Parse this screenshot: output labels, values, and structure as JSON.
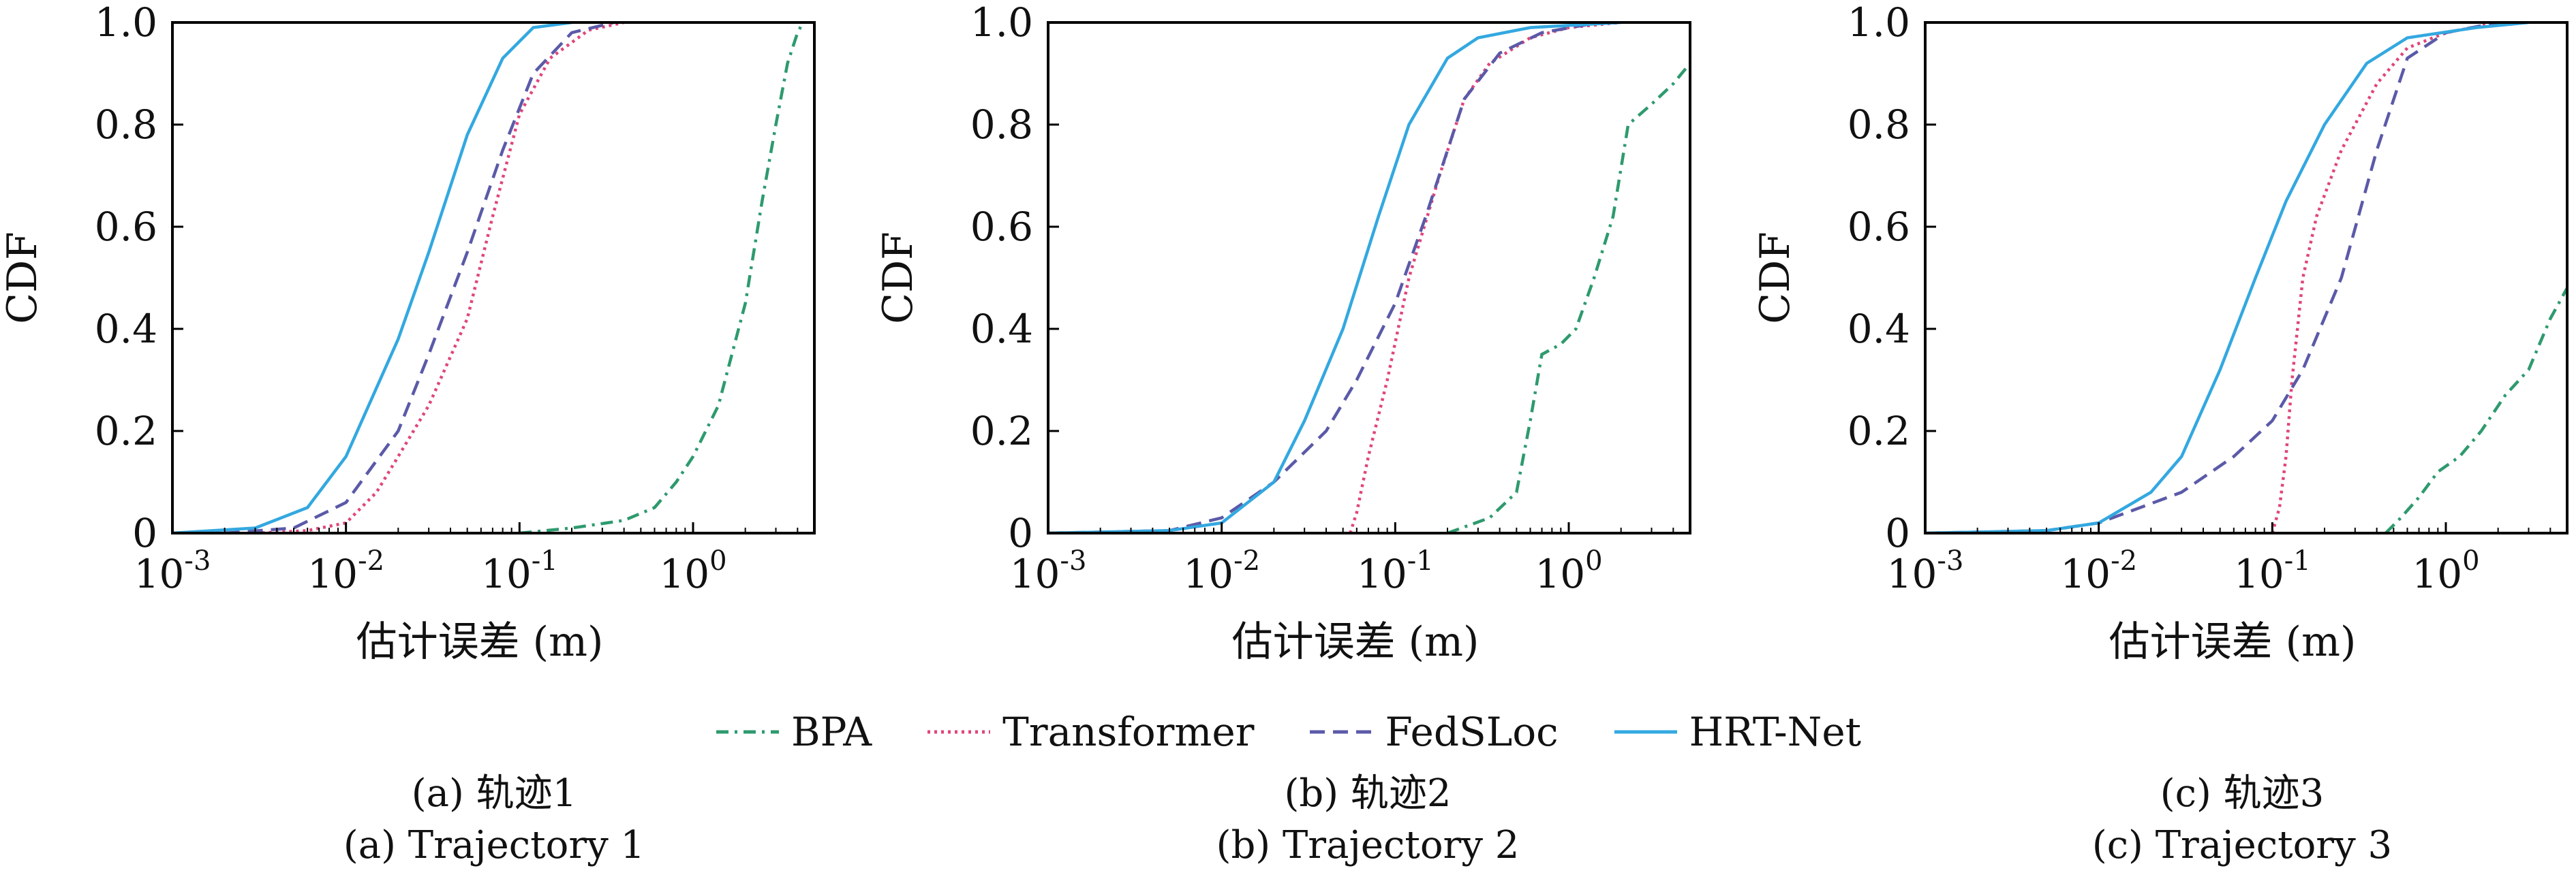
{
  "legend": {
    "items": [
      {
        "name": "BPA",
        "color": "#2e9a6e",
        "dash": "18,9,4,9"
      },
      {
        "name": "Transformer",
        "color": "#e0457b",
        "dash": "4,6"
      },
      {
        "name": "FedSLoc",
        "color": "#5b5aa8",
        "dash": "22,12"
      },
      {
        "name": "HRT-Net",
        "color": "#33a8e0",
        "dash": ""
      }
    ]
  },
  "chart_data": [
    {
      "type": "line",
      "xscale": "log",
      "xlim": [
        0.001,
        5
      ],
      "ylim": [
        0,
        1
      ],
      "xlabel": "估计误差 (m)",
      "ylabel": "CDF",
      "xticks": [
        {
          "v": 0.001,
          "base": "10",
          "exp": "-3"
        },
        {
          "v": 0.01,
          "base": "10",
          "exp": "-2"
        },
        {
          "v": 0.1,
          "base": "10",
          "exp": "-1"
        },
        {
          "v": 1,
          "base": "10",
          "exp": "0"
        }
      ],
      "yticks": [
        {
          "v": 0,
          "label": "0"
        },
        {
          "v": 0.2,
          "label": "0.2"
        },
        {
          "v": 0.4,
          "label": "0.4"
        },
        {
          "v": 0.6,
          "label": "0.6"
        },
        {
          "v": 0.8,
          "label": "0.8"
        },
        {
          "v": 1,
          "label": "1.0"
        }
      ],
      "caption_cn": "(a) 轨迹1",
      "caption_en": "(a) Trajectory 1",
      "series": [
        {
          "name": "BPA",
          "points": [
            [
              0.1,
              0
            ],
            [
              0.2,
              0.01
            ],
            [
              0.4,
              0.025
            ],
            [
              0.6,
              0.05
            ],
            [
              0.8,
              0.1
            ],
            [
              1,
              0.15
            ],
            [
              1.4,
              0.25
            ],
            [
              2,
              0.45
            ],
            [
              2.5,
              0.65
            ],
            [
              3,
              0.8
            ],
            [
              3.5,
              0.92
            ],
            [
              4,
              0.98
            ],
            [
              4.3,
              1
            ]
          ]
        },
        {
          "name": "Transformer",
          "points": [
            [
              0.003,
              0
            ],
            [
              0.006,
              0.005
            ],
            [
              0.01,
              0.02
            ],
            [
              0.015,
              0.08
            ],
            [
              0.02,
              0.15
            ],
            [
              0.03,
              0.25
            ],
            [
              0.05,
              0.42
            ],
            [
              0.07,
              0.62
            ],
            [
              0.1,
              0.82
            ],
            [
              0.15,
              0.93
            ],
            [
              0.25,
              0.985
            ],
            [
              0.4,
              1
            ]
          ]
        },
        {
          "name": "FedSLoc",
          "points": [
            [
              0.002,
              0
            ],
            [
              0.005,
              0.01
            ],
            [
              0.01,
              0.06
            ],
            [
              0.02,
              0.2
            ],
            [
              0.03,
              0.35
            ],
            [
              0.05,
              0.55
            ],
            [
              0.08,
              0.75
            ],
            [
              0.12,
              0.9
            ],
            [
              0.2,
              0.98
            ],
            [
              0.35,
              1
            ]
          ]
        },
        {
          "name": "HRT-Net",
          "points": [
            [
              0.001,
              0
            ],
            [
              0.003,
              0.01
            ],
            [
              0.006,
              0.05
            ],
            [
              0.01,
              0.15
            ],
            [
              0.02,
              0.38
            ],
            [
              0.03,
              0.55
            ],
            [
              0.05,
              0.78
            ],
            [
              0.08,
              0.93
            ],
            [
              0.12,
              0.99
            ],
            [
              0.2,
              1
            ]
          ]
        }
      ]
    },
    {
      "type": "line",
      "xscale": "log",
      "xlim": [
        0.001,
        5
      ],
      "ylim": [
        0,
        1
      ],
      "xlabel": "估计误差 (m)",
      "ylabel": "CDF",
      "xticks": [
        {
          "v": 0.001,
          "base": "10",
          "exp": "-3"
        },
        {
          "v": 0.01,
          "base": "10",
          "exp": "-2"
        },
        {
          "v": 0.1,
          "base": "10",
          "exp": "-1"
        },
        {
          "v": 1,
          "base": "10",
          "exp": "0"
        }
      ],
      "yticks": [
        {
          "v": 0,
          "label": "0"
        },
        {
          "v": 0.2,
          "label": "0.2"
        },
        {
          "v": 0.4,
          "label": "0.4"
        },
        {
          "v": 0.6,
          "label": "0.6"
        },
        {
          "v": 0.8,
          "label": "0.8"
        },
        {
          "v": 1,
          "label": "1.0"
        }
      ],
      "caption_cn": "(b) 轨迹2",
      "caption_en": "(b) Trajectory 2",
      "series": [
        {
          "name": "BPA",
          "points": [
            [
              0.2,
              0
            ],
            [
              0.35,
              0.03
            ],
            [
              0.5,
              0.08
            ],
            [
              0.6,
              0.22
            ],
            [
              0.7,
              0.35
            ],
            [
              0.9,
              0.37
            ],
            [
              1.1,
              0.4
            ],
            [
              1.4,
              0.5
            ],
            [
              1.8,
              0.62
            ],
            [
              2.2,
              0.8
            ],
            [
              3,
              0.84
            ],
            [
              4,
              0.88
            ],
            [
              5,
              0.92
            ]
          ]
        },
        {
          "name": "Transformer",
          "points": [
            [
              0.055,
              0
            ],
            [
              0.06,
              0.04
            ],
            [
              0.07,
              0.15
            ],
            [
              0.09,
              0.3
            ],
            [
              0.12,
              0.5
            ],
            [
              0.18,
              0.7
            ],
            [
              0.25,
              0.85
            ],
            [
              0.35,
              0.92
            ],
            [
              0.6,
              0.97
            ],
            [
              1,
              0.99
            ],
            [
              2,
              1
            ]
          ]
        },
        {
          "name": "FedSLoc",
          "points": [
            [
              0.001,
              0
            ],
            [
              0.005,
              0.005
            ],
            [
              0.01,
              0.03
            ],
            [
              0.02,
              0.1
            ],
            [
              0.04,
              0.2
            ],
            [
              0.06,
              0.3
            ],
            [
              0.1,
              0.45
            ],
            [
              0.15,
              0.62
            ],
            [
              0.25,
              0.85
            ],
            [
              0.4,
              0.94
            ],
            [
              0.7,
              0.98
            ],
            [
              1.5,
              1
            ]
          ]
        },
        {
          "name": "HRT-Net",
          "points": [
            [
              0.001,
              0
            ],
            [
              0.005,
              0.005
            ],
            [
              0.01,
              0.02
            ],
            [
              0.02,
              0.1
            ],
            [
              0.03,
              0.22
            ],
            [
              0.05,
              0.4
            ],
            [
              0.08,
              0.62
            ],
            [
              0.12,
              0.8
            ],
            [
              0.2,
              0.93
            ],
            [
              0.3,
              0.97
            ],
            [
              0.6,
              0.99
            ],
            [
              2,
              1
            ]
          ]
        }
      ]
    },
    {
      "type": "line",
      "xscale": "log",
      "xlim": [
        0.001,
        5
      ],
      "ylim": [
        0,
        1
      ],
      "xlabel": "估计误差 (m)",
      "ylabel": "CDF",
      "xticks": [
        {
          "v": 0.001,
          "base": "10",
          "exp": "-3"
        },
        {
          "v": 0.01,
          "base": "10",
          "exp": "-2"
        },
        {
          "v": 0.1,
          "base": "10",
          "exp": "-1"
        },
        {
          "v": 1,
          "base": "10",
          "exp": "0"
        }
      ],
      "yticks": [
        {
          "v": 0,
          "label": "0"
        },
        {
          "v": 0.2,
          "label": "0.2"
        },
        {
          "v": 0.4,
          "label": "0.4"
        },
        {
          "v": 0.6,
          "label": "0.6"
        },
        {
          "v": 0.8,
          "label": "0.8"
        },
        {
          "v": 1,
          "label": "1.0"
        }
      ],
      "caption_cn": "(c) 轨迹3",
      "caption_en": "(c) Trajectory 3",
      "series": [
        {
          "name": "BPA",
          "points": [
            [
              0.45,
              0
            ],
            [
              0.55,
              0.03
            ],
            [
              0.7,
              0.07
            ],
            [
              0.9,
              0.12
            ],
            [
              1.2,
              0.15
            ],
            [
              1.6,
              0.2
            ],
            [
              2.2,
              0.27
            ],
            [
              3,
              0.32
            ],
            [
              4,
              0.42
            ],
            [
              5,
              0.48
            ]
          ]
        },
        {
          "name": "Transformer",
          "points": [
            [
              0.1,
              0
            ],
            [
              0.11,
              0.05
            ],
            [
              0.12,
              0.15
            ],
            [
              0.13,
              0.3
            ],
            [
              0.15,
              0.5
            ],
            [
              0.18,
              0.62
            ],
            [
              0.25,
              0.75
            ],
            [
              0.4,
              0.88
            ],
            [
              0.6,
              0.95
            ],
            [
              1,
              0.98
            ],
            [
              2,
              1
            ]
          ]
        },
        {
          "name": "FedSLoc",
          "points": [
            [
              0.001,
              0
            ],
            [
              0.005,
              0.005
            ],
            [
              0.01,
              0.02
            ],
            [
              0.03,
              0.08
            ],
            [
              0.06,
              0.15
            ],
            [
              0.1,
              0.22
            ],
            [
              0.15,
              0.32
            ],
            [
              0.25,
              0.5
            ],
            [
              0.4,
              0.75
            ],
            [
              0.6,
              0.93
            ],
            [
              1,
              0.98
            ],
            [
              2,
              1
            ]
          ]
        },
        {
          "name": "HRT-Net",
          "points": [
            [
              0.001,
              0
            ],
            [
              0.005,
              0.005
            ],
            [
              0.01,
              0.02
            ],
            [
              0.02,
              0.08
            ],
            [
              0.03,
              0.15
            ],
            [
              0.05,
              0.32
            ],
            [
              0.08,
              0.5
            ],
            [
              0.12,
              0.65
            ],
            [
              0.2,
              0.8
            ],
            [
              0.35,
              0.92
            ],
            [
              0.6,
              0.97
            ],
            [
              1.5,
              0.99
            ],
            [
              3,
              1
            ]
          ]
        }
      ]
    }
  ]
}
